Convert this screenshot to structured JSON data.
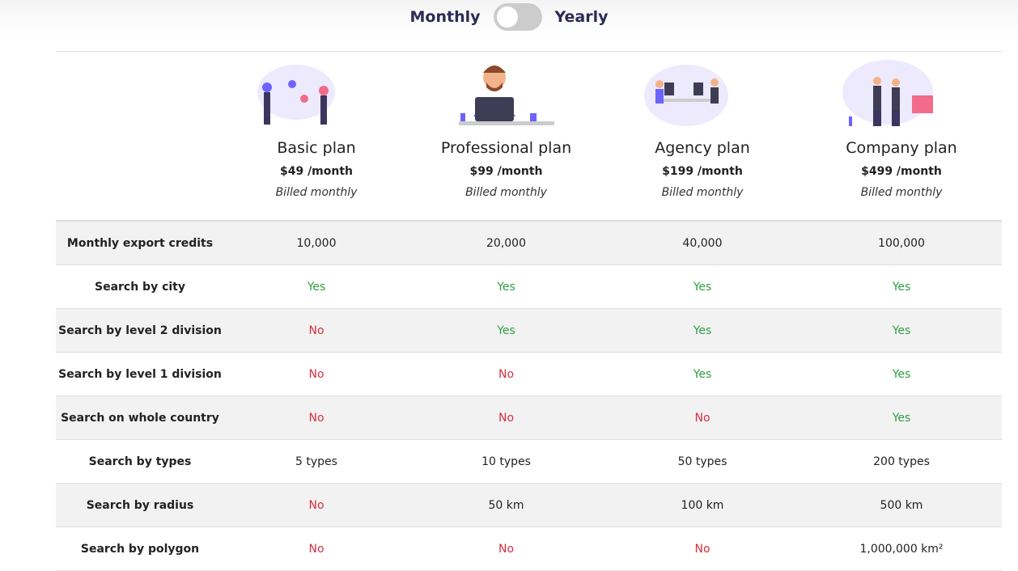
{
  "toggle": {
    "left": "Monthly",
    "right": "Yearly"
  },
  "plans": [
    {
      "name": "Basic plan",
      "price": "$49 /month",
      "billing": "Billed monthly"
    },
    {
      "name": "Professional plan",
      "price": "$99 /month",
      "billing": "Billed monthly"
    },
    {
      "name": "Agency plan",
      "price": "$199 /month",
      "billing": "Billed monthly"
    },
    {
      "name": "Company plan",
      "price": "$499 /month",
      "billing": "Billed monthly"
    }
  ],
  "value_colors": {
    "Yes": "#2e9e44",
    "No": "#d6303f"
  },
  "features": [
    {
      "label": "Monthly export credits",
      "values": [
        "10,000",
        "20,000",
        "40,000",
        "100,000"
      ]
    },
    {
      "label": "Search by city",
      "values": [
        "Yes",
        "Yes",
        "Yes",
        "Yes"
      ]
    },
    {
      "label": "Search by level 2 division",
      "values": [
        "No",
        "Yes",
        "Yes",
        "Yes"
      ]
    },
    {
      "label": "Search by level 1 division",
      "values": [
        "No",
        "No",
        "Yes",
        "Yes"
      ]
    },
    {
      "label": "Search on whole country",
      "values": [
        "No",
        "No",
        "No",
        "Yes"
      ]
    },
    {
      "label": "Search by types",
      "values": [
        "5 types",
        "10 types",
        "50 types",
        "200 types"
      ]
    },
    {
      "label": "Search by radius",
      "values": [
        "No",
        "50 km",
        "100 km",
        "500 km"
      ]
    },
    {
      "label": "Search by polygon",
      "values": [
        "No",
        "No",
        "No",
        "1,000,000 km²"
      ]
    }
  ]
}
